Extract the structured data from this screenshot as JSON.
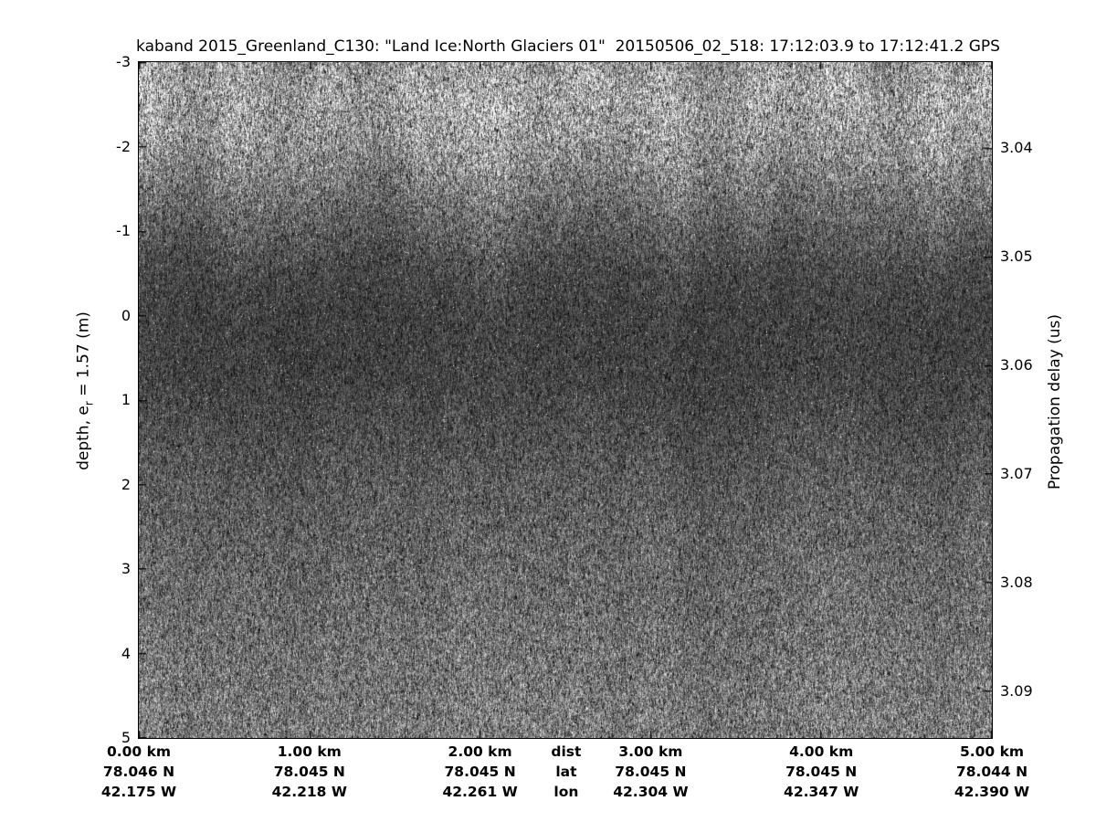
{
  "title": "kaband 2015_Greenland_C130: \"Land Ice:North Glaciers 01\"  20150506_02_518: 17:12:03.9 to 17:12:41.2 GPS",
  "left_axis": {
    "label_pre": "depth, e",
    "label_sub": "r",
    "label_post": " = 1.57 (m)",
    "ticks": [
      "-3",
      "-2",
      "-1",
      "0",
      "1",
      "2",
      "3",
      "4",
      "5"
    ]
  },
  "right_axis": {
    "label": "Propagation delay (us)",
    "ticks": [
      "3.04",
      "3.05",
      "3.06",
      "3.07",
      "3.08",
      "3.09"
    ]
  },
  "bottom_axis": {
    "row_headers": {
      "dist": "dist",
      "lat": "lat",
      "lon": "lon"
    },
    "columns": [
      {
        "dist": "0.00 km",
        "lat": "78.046 N",
        "lon": "42.175 W"
      },
      {
        "dist": "1.00 km",
        "lat": "78.045 N",
        "lon": "42.218 W"
      },
      {
        "dist": "2.00 km",
        "lat": "78.045 N",
        "lon": "42.261 W"
      },
      {
        "dist": "3.00 km",
        "lat": "78.045 N",
        "lon": "42.304 W"
      },
      {
        "dist": "4.00 km",
        "lat": "78.045 N",
        "lon": "42.347 W"
      },
      {
        "dist": "5.00 km",
        "lat": "78.044 N",
        "lon": "42.390 W"
      }
    ]
  },
  "chart_data": {
    "type": "heatmap",
    "title": "kaband 2015_Greenland_C130: \"Land Ice:North Glaciers 01\"  20150506_02_518: 17:12:03.9 to 17:12:41.2 GPS",
    "description": "Ka-band radar altimeter echogram (grayscale speckle image) over Greenland land ice; bright scattering band above the surface return, dark band near 0 m depth, medium noise floor below.",
    "colormap": "gray",
    "x_axis": {
      "row_labels": [
        "dist",
        "lat",
        "lon"
      ],
      "distance_km": [
        0.0,
        1.0,
        2.0,
        3.0,
        4.0,
        5.0
      ],
      "lat_N": [
        78.046,
        78.045,
        78.045,
        78.045,
        78.045,
        78.044
      ],
      "lon_W": [
        42.175,
        42.218,
        42.261,
        42.304,
        42.347,
        42.39
      ],
      "range_km": [
        0,
        5
      ]
    },
    "y_left": {
      "label": "depth, e_r = 1.57 (m)",
      "range": [
        -3,
        5
      ],
      "ticks": [
        -3,
        -2,
        -1,
        0,
        1,
        2,
        3,
        4,
        5
      ]
    },
    "y_right": {
      "label": "Propagation delay (us)",
      "ticks": [
        3.04,
        3.05,
        3.06,
        3.07,
        3.08,
        3.09
      ]
    },
    "grid": false,
    "legend": false,
    "intensity_profile": [
      {
        "depth_m": -3.0,
        "gray": 150
      },
      {
        "depth_m": -2.6,
        "gray": 162
      },
      {
        "depth_m": -2.0,
        "gray": 147
      },
      {
        "depth_m": -1.5,
        "gray": 118
      },
      {
        "depth_m": -1.0,
        "gray": 92
      },
      {
        "depth_m": -0.5,
        "gray": 72
      },
      {
        "depth_m": 0.0,
        "gray": 65
      },
      {
        "depth_m": 0.8,
        "gray": 67
      },
      {
        "depth_m": 1.5,
        "gray": 80
      },
      {
        "depth_m": 2.0,
        "gray": 90
      },
      {
        "depth_m": 3.0,
        "gray": 103
      },
      {
        "depth_m": 4.0,
        "gray": 113
      },
      {
        "depth_m": 5.0,
        "gray": 122
      }
    ]
  }
}
